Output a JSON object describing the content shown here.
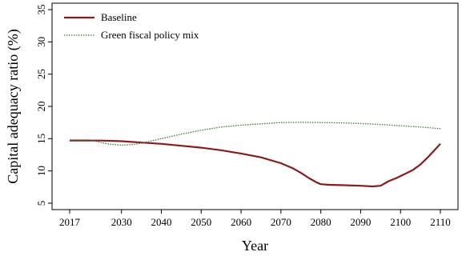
{
  "chart_data": {
    "type": "line",
    "title": "",
    "xlabel": "Year",
    "ylabel": "Capital adequacy ratio (%)",
    "xlim": [
      2017,
      2110
    ],
    "ylim": [
      4.5,
      35.5
    ],
    "x_ticks": [
      2017,
      2030,
      2040,
      2050,
      2060,
      2070,
      2080,
      2090,
      2100,
      2110
    ],
    "y_ticks": [
      5,
      10,
      15,
      20,
      25,
      30,
      35
    ],
    "grid": false,
    "legend_position": "top-left",
    "series": [
      {
        "name": "Baseline",
        "color": "#8b1a1a",
        "style": "solid",
        "x": [
          2017,
          2020,
          2025,
          2030,
          2035,
          2040,
          2045,
          2050,
          2055,
          2060,
          2065,
          2070,
          2073,
          2075,
          2077,
          2079,
          2080,
          2082,
          2085,
          2090,
          2093,
          2095,
          2097,
          2099,
          2100,
          2103,
          2105,
          2107,
          2110
        ],
        "y": [
          14.7,
          14.7,
          14.7,
          14.6,
          14.4,
          14.2,
          13.9,
          13.6,
          13.2,
          12.7,
          12.1,
          11.2,
          10.4,
          9.7,
          8.9,
          8.2,
          7.95,
          7.85,
          7.8,
          7.7,
          7.6,
          7.7,
          8.4,
          8.9,
          9.2,
          10.1,
          11.0,
          12.2,
          14.2
        ]
      },
      {
        "name": "Green fiscal policy mix",
        "color": "#3a7a3a",
        "style": "dotted",
        "x": [
          2017,
          2022,
          2025,
          2027,
          2030,
          2033,
          2035,
          2040,
          2045,
          2050,
          2055,
          2060,
          2065,
          2070,
          2075,
          2080,
          2085,
          2090,
          2095,
          2100,
          2105,
          2110
        ],
        "y": [
          14.8,
          14.8,
          14.4,
          14.15,
          14.0,
          14.1,
          14.3,
          15.0,
          15.7,
          16.3,
          16.8,
          17.1,
          17.3,
          17.5,
          17.55,
          17.5,
          17.45,
          17.35,
          17.2,
          17.0,
          16.8,
          16.55
        ]
      }
    ]
  }
}
